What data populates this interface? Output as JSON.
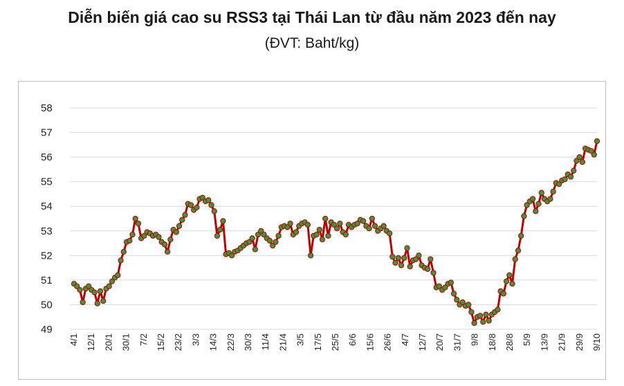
{
  "chart_data": {
    "type": "line",
    "title": "Diễn biến giá cao su RSS3 tại Thái Lan từ đầu năm 2023 đến nay",
    "subtitle": "(ĐVT: Baht/kg)",
    "xlabel": "",
    "ylabel": "",
    "ylim": [
      49,
      58
    ],
    "yticks": [
      49,
      50,
      51,
      52,
      53,
      54,
      55,
      56,
      57,
      58
    ],
    "grid": "horizontal",
    "legend": "none",
    "line_color": "#c00000",
    "marker_color": "#3a9a3a",
    "xtick_labels": [
      "4/1",
      "12/1",
      "20/1",
      "30/1",
      "7/2",
      "15/2",
      "23/2",
      "3/3",
      "14/3",
      "22/3",
      "30/3",
      "11/4",
      "21/4",
      "3/5",
      "17/5",
      "25/5",
      "6/6",
      "15/6",
      "26/6",
      "4/7",
      "12/7",
      "20/7",
      "31/7",
      "9/8",
      "18/8",
      "28/8",
      "5/9",
      "13/9",
      "21/9",
      "29/9",
      "9/10"
    ],
    "series": [
      {
        "values": [
          50.85,
          50.75,
          50.6,
          50.1,
          50.65,
          50.75,
          50.6,
          50.5,
          50.05,
          50.55,
          50.15,
          50.65,
          50.75,
          50.95,
          51.1,
          51.2,
          51.8,
          52.15,
          52.55,
          52.6,
          52.85,
          53.5,
          53.3,
          52.7,
          52.8,
          52.95,
          52.9,
          52.8,
          52.85,
          52.75,
          52.55,
          52.45,
          52.15,
          52.65,
          53.05,
          52.95,
          53.2,
          53.45,
          53.65,
          54.1,
          54.05,
          53.85,
          53.95,
          54.3,
          54.35,
          54.2,
          54.25,
          54.05,
          53.8,
          52.8,
          53.05,
          53.4,
          52.05,
          52.1,
          52.0,
          52.15,
          52.2,
          52.3,
          52.4,
          52.5,
          52.55,
          52.7,
          52.25,
          52.85,
          53.0,
          52.85,
          52.7,
          52.6,
          52.4,
          52.55,
          52.8,
          53.15,
          53.2,
          53.15,
          53.3,
          52.85,
          52.95,
          53.2,
          53.3,
          53.35,
          53.25,
          52.0,
          52.8,
          52.85,
          53.05,
          52.65,
          53.5,
          52.8,
          53.35,
          53.25,
          53.1,
          53.3,
          52.95,
          52.85,
          53.25,
          53.15,
          53.25,
          53.3,
          53.45,
          53.4,
          53.2,
          53.1,
          53.5,
          53.2,
          53.0,
          53.1,
          53.2,
          53.0,
          52.9,
          51.95,
          51.7,
          51.9,
          51.6,
          51.9,
          52.3,
          51.55,
          51.8,
          51.85,
          52.0,
          51.6,
          51.5,
          51.45,
          51.85,
          51.3,
          50.7,
          50.75,
          50.6,
          50.7,
          50.85,
          50.9,
          50.45,
          50.2,
          50.0,
          50.1,
          49.95,
          50.0,
          49.7,
          49.25,
          49.5,
          49.55,
          49.3,
          49.6,
          49.35,
          49.6,
          49.7,
          49.8,
          50.55,
          50.45,
          50.95,
          51.2,
          50.85,
          51.85,
          52.2,
          52.8,
          53.6,
          54.05,
          54.2,
          54.3,
          53.8,
          54.1,
          54.55,
          54.3,
          54.2,
          54.3,
          54.6,
          54.95,
          54.9,
          55.05,
          55.1,
          55.3,
          55.2,
          55.45,
          55.85,
          56.0,
          55.8,
          56.35,
          56.3,
          56.25,
          56.1,
          56.65
        ]
      }
    ]
  }
}
